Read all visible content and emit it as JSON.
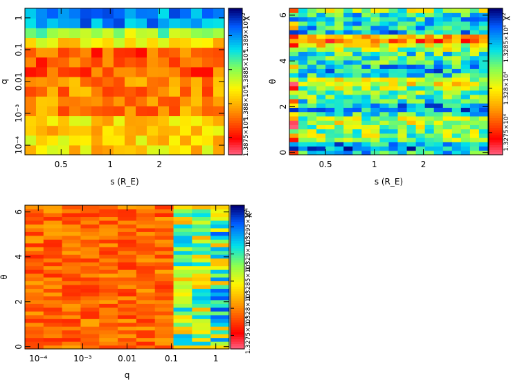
{
  "chart_data": [
    {
      "type": "heatmap",
      "title": "",
      "xlabel": "s (R_E)",
      "ylabel": "q",
      "xscale": "log",
      "yscale": "log",
      "xlim": [
        0.3,
        5.0
      ],
      "ylim": [
        5e-05,
        2.0
      ],
      "xticks": [
        {
          "label": "0.5",
          "v": 0.5
        },
        {
          "label": "1",
          "v": 1
        },
        {
          "label": "2",
          "v": 2
        }
      ],
      "yticks": [
        {
          "label": "1",
          "v": 1
        },
        {
          "label": "0.1",
          "v": 0.1
        },
        {
          "label": "0.01",
          "v": 0.01
        },
        {
          "label": "10⁻³",
          "v": 0.001
        },
        {
          "label": "10⁻⁴",
          "v": 0.0001
        }
      ],
      "grid": [
        18,
        15
      ],
      "colorbar": {
        "label": "χ²",
        "ticks": [
          "1.3875×10⁴",
          "1.388×10⁴",
          "1.3885×10⁴",
          "1.389×10⁴"
        ]
      },
      "pattern": "A"
    },
    {
      "type": "heatmap",
      "title": "",
      "xlabel": "s (R_E)",
      "ylabel": "θ",
      "xscale": "log",
      "yscale": "linear",
      "xlim": [
        0.3,
        5.0
      ],
      "ylim": [
        -0.1,
        6.3
      ],
      "xticks": [
        {
          "label": "0.5",
          "v": 0.5
        },
        {
          "label": "1",
          "v": 1
        },
        {
          "label": "2",
          "v": 2
        }
      ],
      "yticks": [
        {
          "label": "0",
          "v": 0
        },
        {
          "label": "2",
          "v": 2
        },
        {
          "label": "4",
          "v": 4
        },
        {
          "label": "6",
          "v": 6
        }
      ],
      "grid": [
        22,
        34
      ],
      "colorbar": {
        "label": "χ²",
        "ticks": [
          "1.3275×10⁴",
          "1.328×10⁴",
          "1.3285×10⁴"
        ]
      },
      "pattern": "B"
    },
    {
      "type": "heatmap",
      "title": "",
      "xlabel": "q",
      "ylabel": "θ",
      "xscale": "log",
      "yscale": "linear",
      "xlim": [
        5e-05,
        2.0
      ],
      "ylim": [
        -0.1,
        6.3
      ],
      "xticks": [
        {
          "label": "10⁻⁴",
          "v": 0.0001
        },
        {
          "label": "10⁻³",
          "v": 0.001
        },
        {
          "label": "0.01",
          "v": 0.01
        },
        {
          "label": "0.1",
          "v": 0.1
        },
        {
          "label": "1",
          "v": 1
        }
      ],
      "yticks": [
        {
          "label": "0",
          "v": 0
        },
        {
          "label": "2",
          "v": 2
        },
        {
          "label": "4",
          "v": 4
        },
        {
          "label": "6",
          "v": 6
        }
      ],
      "grid": [
        11,
        38
      ],
      "colorbar": {
        "label": "χ²",
        "ticks": [
          "1.3275×10⁴",
          "1.328×10⁴",
          "1.3285×10⁴",
          "1.329×10⁴",
          "1.3295×10⁴"
        ]
      },
      "pattern": "C"
    }
  ]
}
